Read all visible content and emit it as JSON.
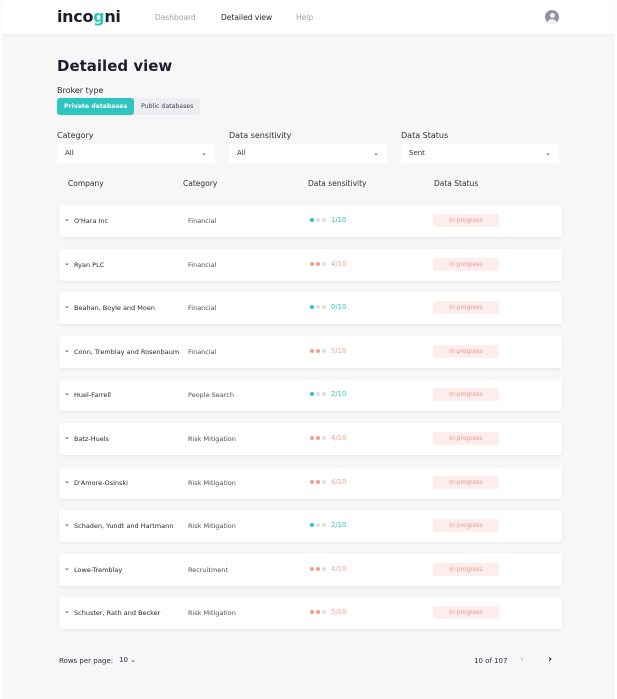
{
  "brand": {
    "logo_prefix": "inco",
    "logo_g": "g",
    "logo_suffix": "ni"
  },
  "nav": [
    {
      "label": "Dashboard",
      "active": false
    },
    {
      "label": "Detailed view",
      "active": true
    },
    {
      "label": "Help",
      "active": false
    }
  ],
  "page": {
    "title": "Detailed view"
  },
  "broker_type": {
    "label": "Broker type",
    "options": [
      "Private databases",
      "Public databases"
    ],
    "selected": "Private databases"
  },
  "filters": {
    "category": {
      "label": "Category",
      "value": "All"
    },
    "sensitivity": {
      "label": "Data sensitivity",
      "value": "All"
    },
    "status": {
      "label": "Data Status",
      "value": "Sent"
    }
  },
  "columns": [
    "Company",
    "Category",
    "Data sensitivity",
    "Data Status"
  ],
  "colors": {
    "accent": "#2ec4bf",
    "sens_low": "#2ec4bf",
    "sens_mid": "#f2a090",
    "badge_bg": "#fdeeed",
    "badge_text": "#f0928a"
  },
  "rows": [
    {
      "company": "O'Hara Inc",
      "category": "Financial",
      "score": "1/10",
      "level": 1,
      "status": "In progress"
    },
    {
      "company": "Ryan PLC",
      "category": "Financial",
      "score": "4/10",
      "level": 2,
      "status": "In progress"
    },
    {
      "company": "Beahan, Boyle and Moen",
      "category": "Financial",
      "score": "0/10",
      "level": 1,
      "status": "In progress"
    },
    {
      "company": "Conn, Tremblay and Rosenbaum",
      "category": "Financial",
      "score": "5/10",
      "level": 2,
      "status": "In progress"
    },
    {
      "company": "Huel-Farrell",
      "category": "People Search",
      "score": "2/10",
      "level": 1,
      "status": "In progress"
    },
    {
      "company": "Batz-Huels",
      "category": "Risk Mitigation",
      "score": "4/10",
      "level": 2,
      "status": "In progress"
    },
    {
      "company": "D'Amore-Osinski",
      "category": "Risk Mitigation",
      "score": "4/10",
      "level": 2,
      "status": "In progress"
    },
    {
      "company": "Schaden, Yundt and Hartmann",
      "category": "Risk Mitigation",
      "score": "2/10",
      "level": 1,
      "status": "In progress"
    },
    {
      "company": "Lowe-Tremblay",
      "category": "Recruitment",
      "score": "4/10",
      "level": 2,
      "status": "In progress"
    },
    {
      "company": "Schuster, Rath and Becker",
      "category": "Risk Mitigation",
      "score": "5/10",
      "level": 2,
      "status": "In progress"
    }
  ],
  "pagination": {
    "rows_label": "Rows per page:",
    "rows_per_page": "10",
    "range": "10 of 107"
  }
}
